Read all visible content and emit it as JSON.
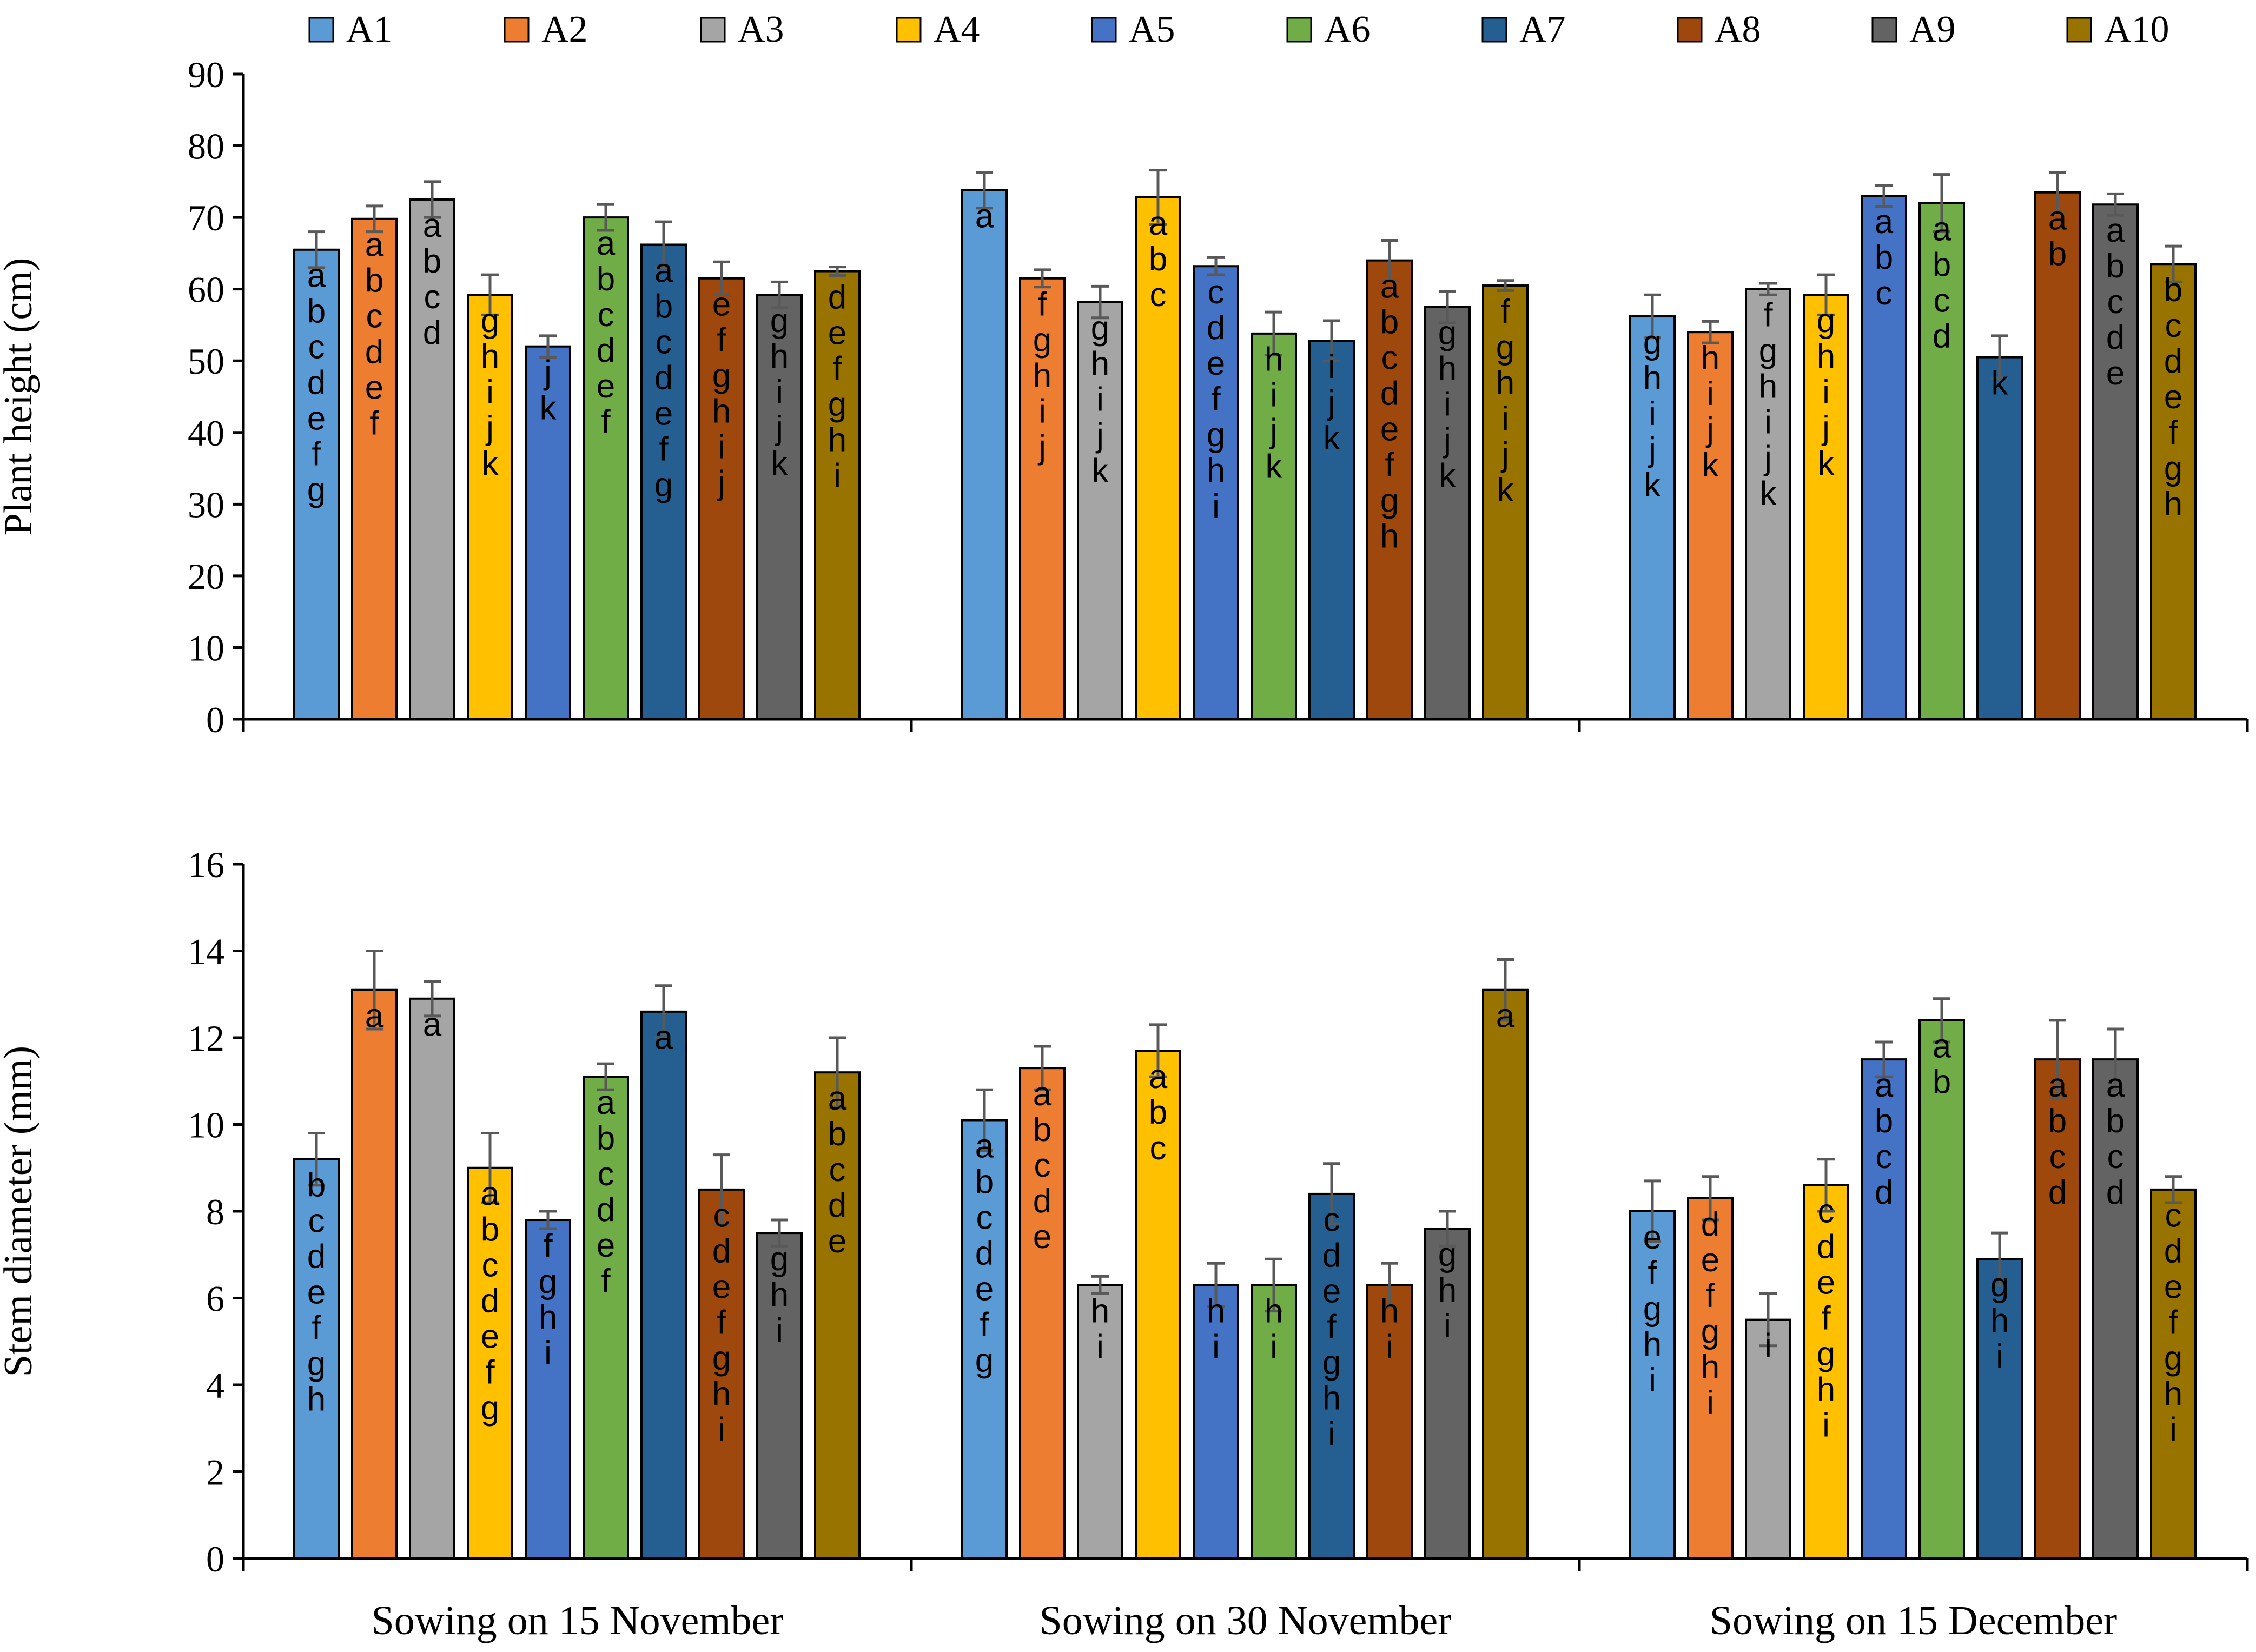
{
  "chart_data": {
    "type": "bar",
    "legend": [
      "A1",
      "A2",
      "A3",
      "A4",
      "A5",
      "A6",
      "A7",
      "A8",
      "A9",
      "A10"
    ],
    "legend_position": "top",
    "categories": [
      "Sowing on 15 November",
      "Sowing on 30 November",
      "Sowing on 15 December"
    ],
    "colors": [
      "#5B9BD5",
      "#ED7D31",
      "#A5A5A5",
      "#FFC000",
      "#4472C4",
      "#70AD47",
      "#255E91",
      "#9E480E",
      "#636363",
      "#997300"
    ],
    "panels": [
      {
        "ylabel": "Plant height (cm)",
        "ylim": [
          0,
          90
        ],
        "ytick_step": 10,
        "series_values": [
          [
            65.5,
            69.8,
            72.5,
            59.2,
            52.0,
            70.0,
            66.2,
            61.5,
            59.2,
            62.5
          ],
          [
            73.8,
            61.5,
            58.2,
            72.8,
            63.2,
            53.8,
            52.8,
            64.0,
            57.5,
            60.5
          ],
          [
            56.2,
            54.0,
            60.0,
            59.2,
            73.0,
            72.0,
            50.5,
            73.5,
            71.8,
            63.5
          ]
        ],
        "errors": [
          [
            2.5,
            1.8,
            2.5,
            2.8,
            1.5,
            1.8,
            3.2,
            2.3,
            1.8,
            0.6
          ],
          [
            2.5,
            1.2,
            2.2,
            3.8,
            1.2,
            3.0,
            2.8,
            2.8,
            2.2,
            0.7
          ],
          [
            3.0,
            1.5,
            0.8,
            2.8,
            1.5,
            4.0,
            3.0,
            2.8,
            1.5,
            2.5
          ]
        ],
        "letters": [
          [
            "abcdefg",
            "abcdef",
            "abcd",
            "ghijk",
            "jk",
            "abcdef",
            "abcdefg",
            "efghij",
            "ghijk",
            "defghi"
          ],
          [
            "a",
            "fghij",
            "ghijk",
            "abc",
            "cdefghi",
            "hijk",
            "ijk",
            "abcdefgh",
            "ghijk",
            "fghijk"
          ],
          [
            "ghijk",
            "hijk",
            "fghijk",
            "ghijk",
            "abc",
            "abcd",
            "k",
            "ab",
            "abcde",
            "bcdefgh"
          ]
        ]
      },
      {
        "ylabel": "Stem diameter (mm)",
        "ylim": [
          0,
          16
        ],
        "ytick_step": 2,
        "series_values": [
          [
            9.2,
            13.1,
            12.9,
            9.0,
            7.8,
            11.1,
            12.6,
            8.5,
            7.5,
            11.2
          ],
          [
            10.1,
            11.3,
            6.3,
            11.7,
            6.3,
            6.3,
            8.4,
            6.3,
            7.6,
            13.1
          ],
          [
            8.0,
            8.3,
            5.5,
            8.6,
            11.5,
            12.4,
            6.9,
            11.5,
            11.5,
            8.5
          ]
        ],
        "errors": [
          [
            0.6,
            0.9,
            0.4,
            0.8,
            0.2,
            0.3,
            0.6,
            0.8,
            0.3,
            0.8
          ],
          [
            0.7,
            0.5,
            0.2,
            0.6,
            0.5,
            0.6,
            0.7,
            0.5,
            0.4,
            0.7
          ],
          [
            0.7,
            0.5,
            0.6,
            0.6,
            0.4,
            0.5,
            0.6,
            0.9,
            0.7,
            0.3
          ]
        ],
        "letters": [
          [
            "bcdefgh",
            "a",
            "a",
            "abcdefg",
            "fghi",
            "abcdef",
            "a",
            "cdefghi",
            "ghi",
            "abcde"
          ],
          [
            "abcdefg",
            "abcde",
            "hi",
            "abc",
            "hi",
            "hi",
            "cdefghi",
            "hi",
            "ghi",
            "a"
          ],
          [
            "efghi",
            "defghi",
            "i",
            "cdefghi",
            "abcd",
            "ab",
            "ghi",
            "abcd",
            "abcd",
            "cdefghi"
          ]
        ]
      }
    ]
  }
}
